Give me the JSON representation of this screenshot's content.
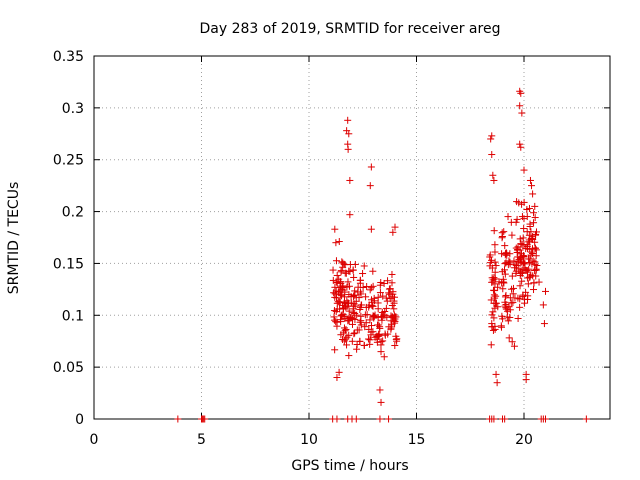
{
  "chart_data": {
    "type": "scatter",
    "title": "Day 283 of 2019, SRMTID for receiver areg",
    "xlabel": "GPS time / hours",
    "ylabel": "SRMTID / TECUs",
    "xlim": [
      0,
      24
    ],
    "ylim": [
      0,
      0.35
    ],
    "xticks": [
      0,
      5,
      10,
      15,
      20
    ],
    "xtick_labels": [
      "0",
      "5",
      "10",
      "15",
      "20"
    ],
    "yticks": [
      0,
      0.05,
      0.1,
      0.15,
      0.2,
      0.25,
      0.3,
      0.35
    ],
    "ytick_labels": [
      "0",
      "0.05",
      "0.1",
      "0.15",
      "0.2",
      "0.25",
      "0.3",
      "0.35"
    ],
    "grid": true,
    "marker": "+",
    "color": "#dd0000",
    "zero_points": [
      3.9,
      5.0,
      5.05,
      5.1,
      5.15,
      11.1,
      11.3,
      11.8,
      12.0,
      12.2,
      13.3,
      13.7,
      18.4,
      18.5,
      18.6,
      19.0,
      19.1,
      20.8,
      20.9,
      21.0,
      22.9
    ],
    "clusters": [
      {
        "x0": 11.1,
        "x1": 11.7,
        "center": 0.115,
        "spread": 0.045,
        "n": 70,
        "seed": 11
      },
      {
        "x0": 11.7,
        "x1": 12.8,
        "center": 0.11,
        "spread": 0.032,
        "n": 90,
        "seed": 12
      },
      {
        "x0": 12.8,
        "x1": 14.1,
        "center": 0.1,
        "spread": 0.033,
        "n": 100,
        "seed": 13
      },
      {
        "x0": 18.4,
        "x1": 19.6,
        "center": 0.13,
        "spread": 0.045,
        "n": 100,
        "seed": 14
      },
      {
        "x0": 19.6,
        "x1": 20.6,
        "center": 0.16,
        "spread": 0.038,
        "n": 120,
        "seed": 15
      }
    ],
    "extra_points": [
      [
        11.8,
        0.288
      ],
      [
        11.75,
        0.278
      ],
      [
        11.85,
        0.275
      ],
      [
        11.8,
        0.265
      ],
      [
        11.82,
        0.26
      ],
      [
        11.9,
        0.23
      ],
      [
        11.9,
        0.197
      ],
      [
        12.9,
        0.243
      ],
      [
        12.85,
        0.225
      ],
      [
        12.9,
        0.183
      ],
      [
        13.3,
        0.028
      ],
      [
        13.35,
        0.016
      ],
      [
        13.5,
        0.06
      ],
      [
        11.3,
        0.04
      ],
      [
        11.4,
        0.045
      ],
      [
        11.2,
        0.183
      ],
      [
        11.25,
        0.17
      ],
      [
        14.0,
        0.185
      ],
      [
        13.9,
        0.18
      ],
      [
        18.5,
        0.273
      ],
      [
        18.45,
        0.27
      ],
      [
        18.5,
        0.255
      ],
      [
        18.55,
        0.235
      ],
      [
        18.6,
        0.23
      ],
      [
        18.7,
        0.043
      ],
      [
        18.75,
        0.035
      ],
      [
        18.5,
        0.092
      ],
      [
        19.8,
        0.316
      ],
      [
        19.85,
        0.314
      ],
      [
        19.8,
        0.302
      ],
      [
        19.9,
        0.295
      ],
      [
        19.8,
        0.265
      ],
      [
        19.85,
        0.262
      ],
      [
        20.0,
        0.24
      ],
      [
        20.3,
        0.23
      ],
      [
        20.35,
        0.225
      ],
      [
        20.4,
        0.217
      ],
      [
        20.5,
        0.205
      ],
      [
        20.1,
        0.043
      ],
      [
        20.1,
        0.038
      ],
      [
        20.6,
        0.148
      ],
      [
        20.7,
        0.132
      ],
      [
        20.9,
        0.11
      ],
      [
        20.95,
        0.092
      ],
      [
        21.0,
        0.123
      ]
    ]
  }
}
